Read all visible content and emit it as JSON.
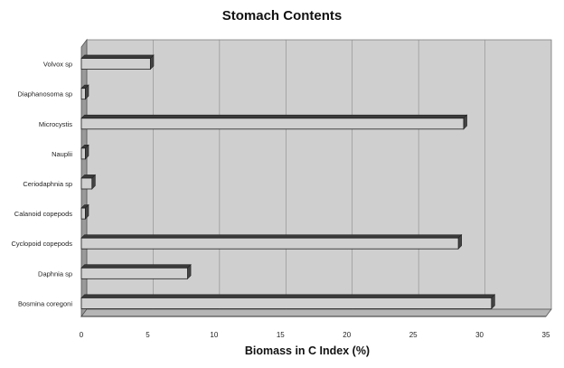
{
  "chart_data": {
    "type": "bar",
    "orientation": "horizontal",
    "style": "3d",
    "title": "Stomach Contents",
    "xlabel": "Biomass in C Index (%)",
    "ylabel": "",
    "xlim": [
      0,
      35
    ],
    "xticks": [
      0,
      5,
      10,
      15,
      20,
      25,
      30,
      35
    ],
    "grid": "vertical",
    "legend": "none",
    "categories": [
      "Volvox sp",
      "Diaphanosoma sp",
      "Microcystis",
      "Nauplii",
      "Ceriodaphnia sp",
      "Calanoid copepods",
      "Cyclopoid copepods",
      "Daphnia sp",
      "Bosmina coregoni"
    ],
    "values": [
      5.2,
      0.3,
      28.8,
      0.3,
      0.8,
      0.3,
      28.4,
      8.0,
      30.9
    ],
    "colors": {
      "bar_face": "#d0d0d0",
      "bar_top": "#3a3a3a",
      "bar_end": "#444444",
      "plot_back": "#cfcfcf",
      "plot_side": "#9a9a9a",
      "gridline": "#8a8a8a"
    }
  }
}
